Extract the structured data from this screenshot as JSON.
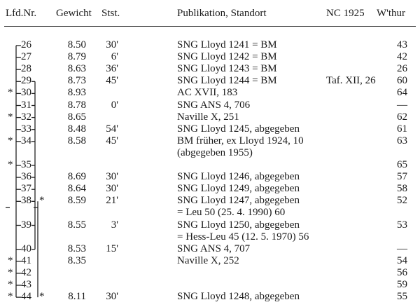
{
  "headers": {
    "lfd": "Lfd.Nr.",
    "gewicht": "Gewicht",
    "stst": "Stst.",
    "publikation": "Publikation, Standort",
    "nc": "NC 1925",
    "wthur": "W'thur"
  },
  "rows": [
    {
      "nr": "26",
      "gewicht": "8.50",
      "stst": "30'",
      "pub": [
        "SNG Lloyd 1241 = BM"
      ],
      "nc": "",
      "wthur": "43",
      "star_left": false,
      "star_right": false
    },
    {
      "nr": "27",
      "gewicht": "8.79",
      "stst": "6'",
      "pub": [
        "SNG Lloyd 1242 = BM"
      ],
      "nc": "",
      "wthur": "42",
      "star_left": false,
      "star_right": false
    },
    {
      "nr": "28",
      "gewicht": "8.63",
      "stst": "36'",
      "pub": [
        "SNG Lloyd 1243 = BM"
      ],
      "nc": "",
      "wthur": "26",
      "star_left": false,
      "star_right": false
    },
    {
      "nr": "29",
      "gewicht": "8.73",
      "stst": "45'",
      "pub": [
        "SNG Lloyd 1244 = BM"
      ],
      "nc": "Taf. XII, 26",
      "wthur": "60",
      "star_left": false,
      "star_right": false
    },
    {
      "nr": "30",
      "gewicht": "8.93",
      "stst": "",
      "pub": [
        "AC XVII, 183"
      ],
      "nc": "",
      "wthur": "64",
      "star_left": true,
      "star_right": false
    },
    {
      "nr": "31",
      "gewicht": "8.78",
      "stst": "0'",
      "pub": [
        "SNG ANS 4, 706"
      ],
      "nc": "",
      "wthur": "—",
      "star_left": false,
      "star_right": false
    },
    {
      "nr": "32",
      "gewicht": "8.65",
      "stst": "",
      "pub": [
        "Naville X, 251"
      ],
      "nc": "",
      "wthur": "62",
      "star_left": true,
      "star_right": false
    },
    {
      "nr": "33",
      "gewicht": "8.48",
      "stst": "54'",
      "pub": [
        "SNG Lloyd 1245, abgegeben"
      ],
      "nc": "",
      "wthur": "61",
      "star_left": false,
      "star_right": false
    },
    {
      "nr": "34",
      "gewicht": "8.58",
      "stst": "45'",
      "pub": [
        "BM früher, ex Lloyd 1924, 10",
        "(abgegeben 1955)"
      ],
      "nc": "",
      "wthur": "63",
      "star_left": true,
      "star_right": false
    },
    {
      "nr": "35",
      "gewicht": "",
      "stst": "",
      "pub": [],
      "nc": "",
      "wthur": "65",
      "star_left": true,
      "star_right": false
    },
    {
      "nr": "36",
      "gewicht": "8.69",
      "stst": "30'",
      "pub": [
        "SNG Lloyd 1246, abgegeben"
      ],
      "nc": "",
      "wthur": "57",
      "star_left": false,
      "star_right": false
    },
    {
      "nr": "37",
      "gewicht": "8.64",
      "stst": "30'",
      "pub": [
        "SNG Lloyd 1249, abgegeben"
      ],
      "nc": "",
      "wthur": "58",
      "star_left": false,
      "star_right": false
    },
    {
      "nr": "38",
      "gewicht": "8.59",
      "stst": "21'",
      "pub": [
        "SNG Lloyd 1247, abgegeben",
        "= Leu 50 (25. 4. 1990) 60"
      ],
      "nc": "",
      "wthur": "52",
      "star_left": false,
      "star_right": true
    },
    {
      "nr": "39",
      "gewicht": "8.55",
      "stst": "3'",
      "pub": [
        "SNG Lloyd 1250, abgegeben",
        "= Hess-Leu 45 (12. 5. 1970) 56"
      ],
      "nc": "",
      "wthur": "53",
      "star_left": false,
      "star_right": false
    },
    {
      "nr": "40",
      "gewicht": "8.53",
      "stst": "15'",
      "pub": [
        "SNG ANS 4, 707"
      ],
      "nc": "",
      "wthur": "—",
      "star_left": false,
      "star_right": false
    },
    {
      "nr": "41",
      "gewicht": "8.35",
      "stst": "",
      "pub": [
        "Naville X, 252"
      ],
      "nc": "",
      "wthur": "54",
      "star_left": true,
      "star_right": false
    },
    {
      "nr": "42",
      "gewicht": "",
      "stst": "",
      "pub": [],
      "nc": "",
      "wthur": "56",
      "star_left": true,
      "star_right": false
    },
    {
      "nr": "43",
      "gewicht": "",
      "stst": "",
      "pub": [],
      "nc": "",
      "wthur": "59",
      "star_left": true,
      "star_right": false
    },
    {
      "nr": "44",
      "gewicht": "8.11",
      "stst": "30'",
      "pub": [
        "SNG Lloyd 1248, abgegeben"
      ],
      "nc": "",
      "wthur": "55",
      "star_left": true,
      "star_right": true
    }
  ],
  "star_symbol": "*"
}
